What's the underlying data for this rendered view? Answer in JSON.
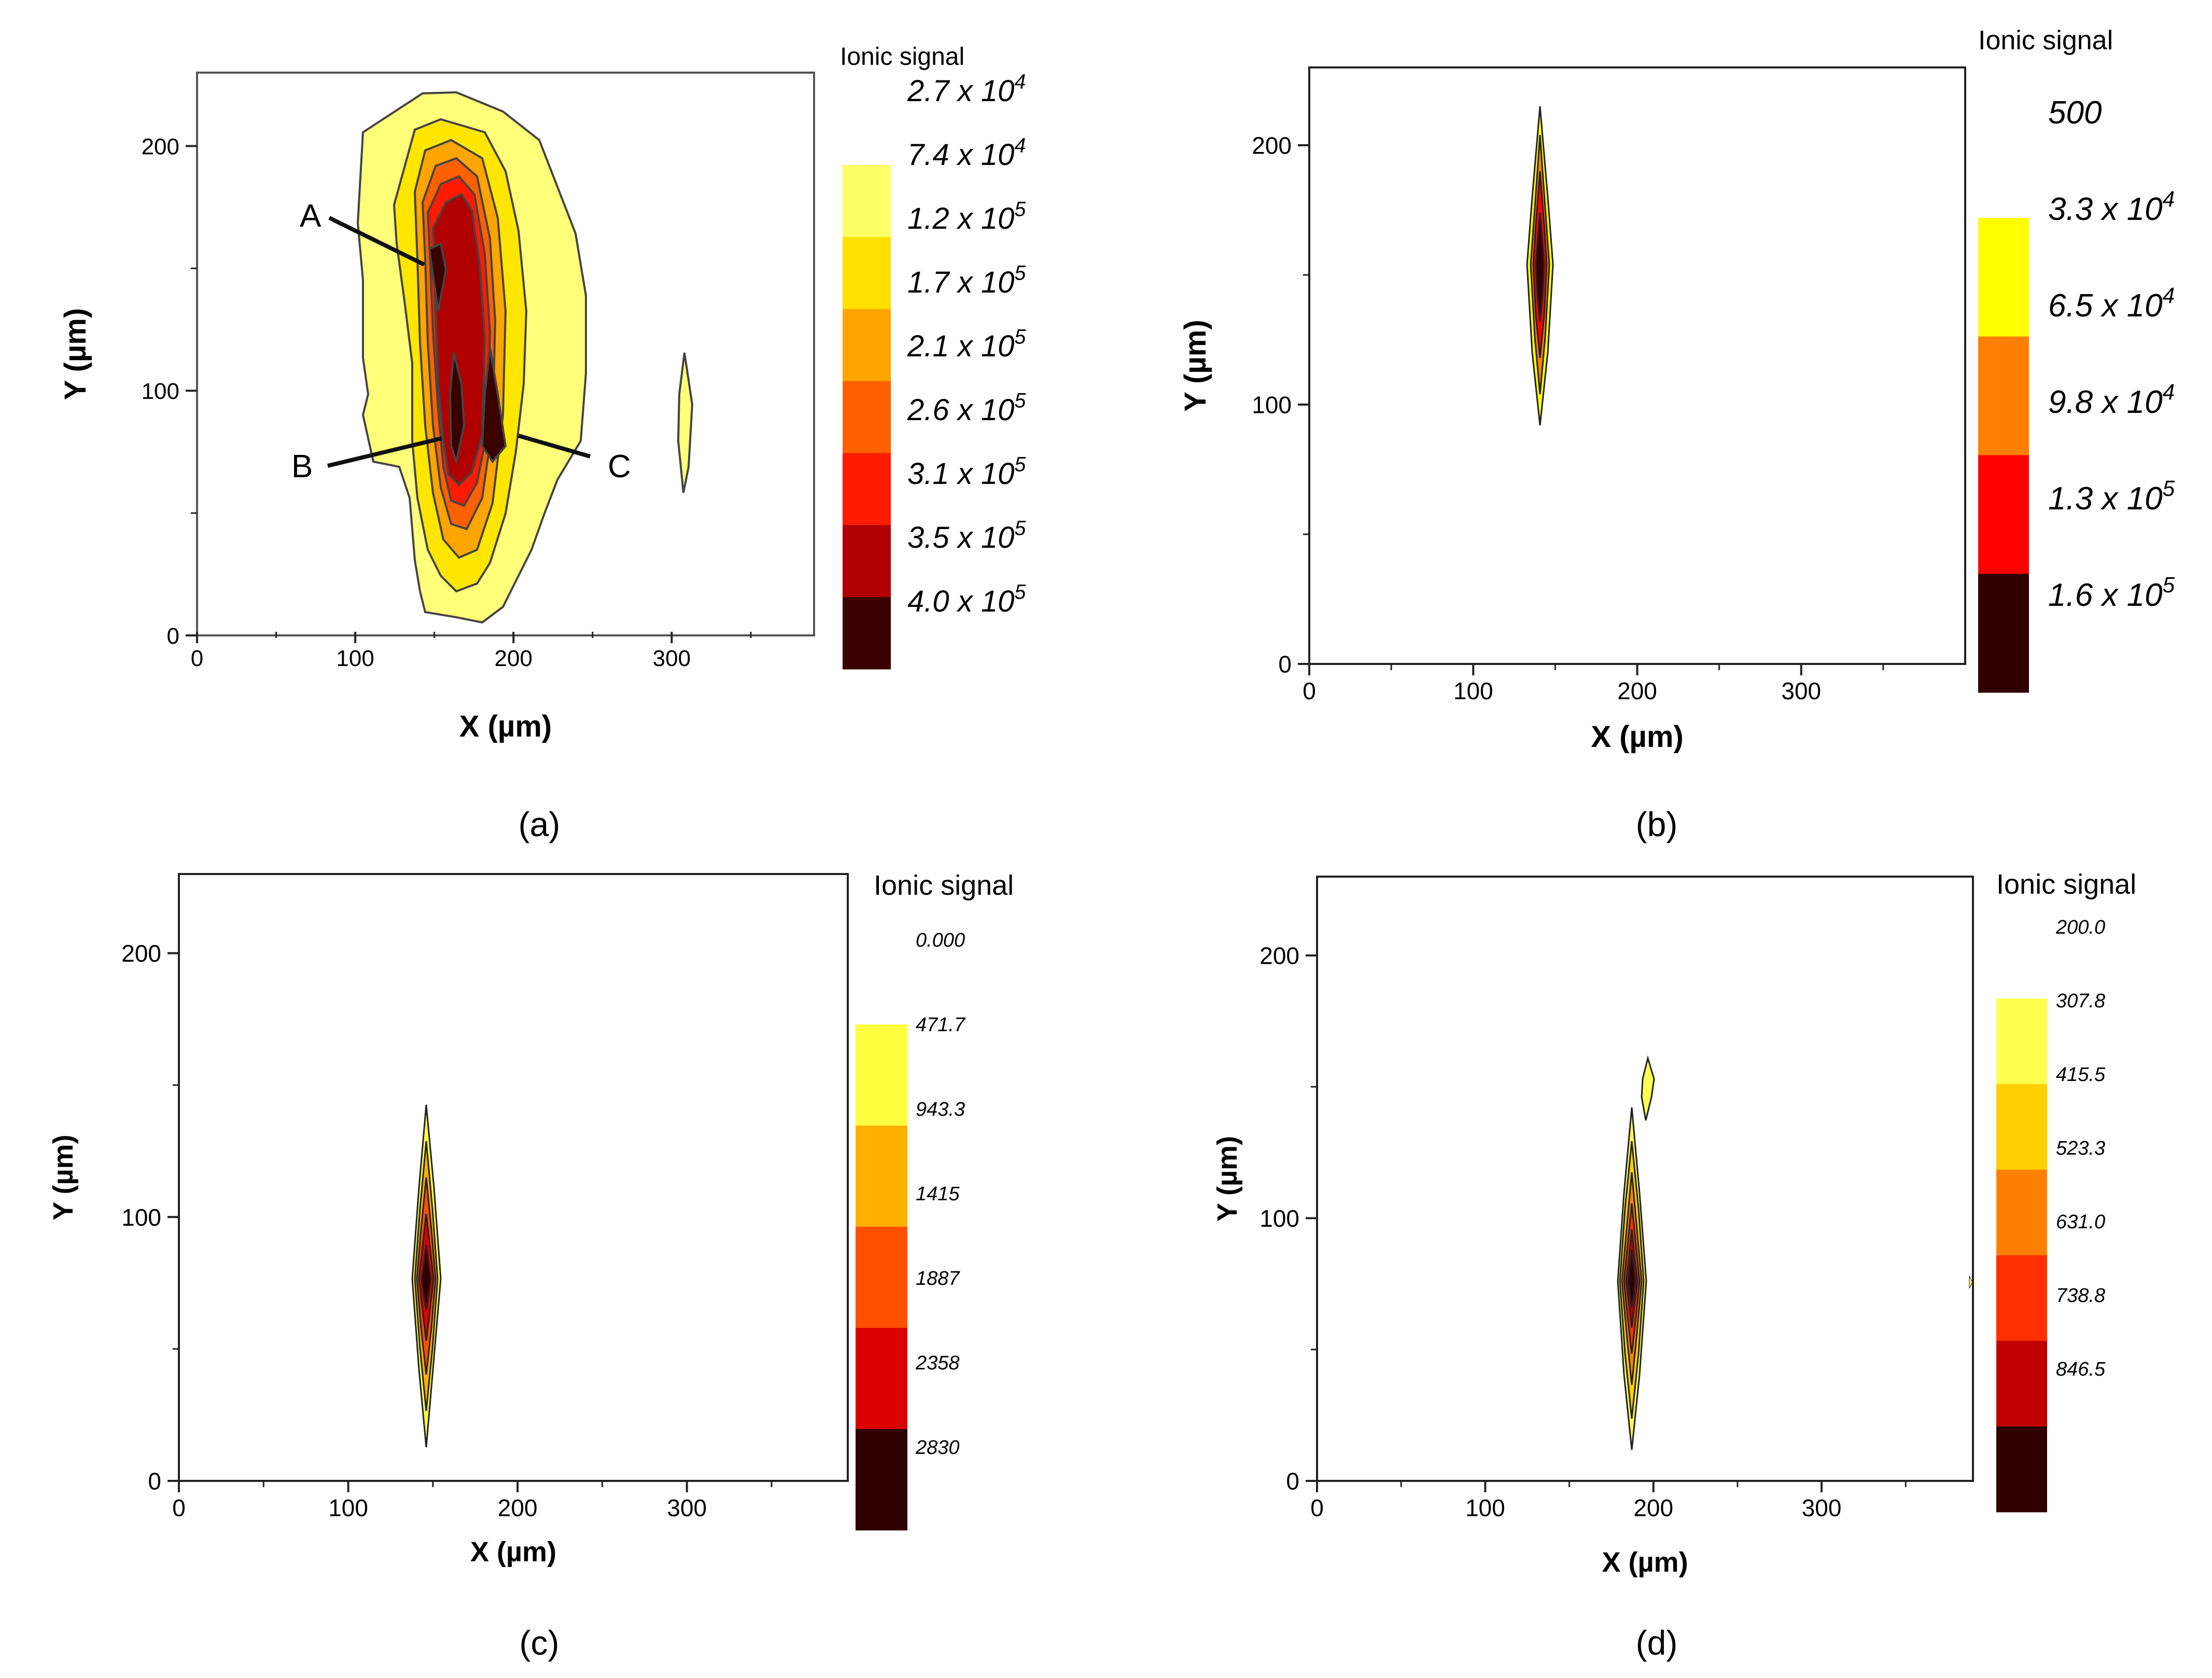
{
  "chart_data": [
    {
      "id": "a",
      "type": "contour",
      "caption": "(a)",
      "xlabel": "X (µm)",
      "ylabel": "Y (µm)",
      "xlim": [
        0,
        390
      ],
      "ylim": [
        0,
        230
      ],
      "xticks": [
        "0",
        "100",
        "200",
        "300"
      ],
      "xtick_values": [
        0,
        100,
        200,
        300
      ],
      "yticks": [
        "0",
        "100",
        "200"
      ],
      "ytick_values": [
        0,
        100,
        200
      ],
      "legend_title": "Ionic signal",
      "legend_levels": [
        {
          "base": "2.7 x 10",
          "exp": "4"
        },
        {
          "base": "7.4 x 10",
          "exp": "4"
        },
        {
          "base": "1.2 x 10",
          "exp": "5"
        },
        {
          "base": "1.7 x 10",
          "exp": "5"
        },
        {
          "base": "2.1 x 10",
          "exp": "5"
        },
        {
          "base": "2.6 x 10",
          "exp": "5"
        },
        {
          "base": "3.1 x 10",
          "exp": "5"
        },
        {
          "base": "3.5 x 10",
          "exp": "5"
        },
        {
          "base": "4.0 x 10",
          "exp": "5"
        }
      ],
      "legend_colors": [
        "#ffffff",
        "#ffff66",
        "#ffe000",
        "#ffa500",
        "#ff6000",
        "#ff1a00",
        "#b00000",
        "#3a0000"
      ],
      "annotations": [
        "A",
        "B",
        "C"
      ]
    },
    {
      "id": "b",
      "type": "contour",
      "caption": "(b)",
      "xlabel": "X (µm)",
      "ylabel": "Y (µm)",
      "xlim": [
        0,
        400
      ],
      "ylim": [
        0,
        230
      ],
      "xticks": [
        "0",
        "100",
        "200",
        "300"
      ],
      "xtick_values": [
        0,
        100,
        200,
        300
      ],
      "yticks": [
        "0",
        "100",
        "200"
      ],
      "ytick_values": [
        0,
        100,
        200
      ],
      "legend_title": "Ionic signal",
      "legend_levels": [
        {
          "base": "500",
          "exp": ""
        },
        {
          "base": "3.3 x 10",
          "exp": "4"
        },
        {
          "base": "6.5 x 10",
          "exp": "4"
        },
        {
          "base": "9.8 x 10",
          "exp": "4"
        },
        {
          "base": "1.3 x 10",
          "exp": "5"
        },
        {
          "base": "1.6 x 10",
          "exp": "5"
        }
      ],
      "legend_colors": [
        "#ffffff",
        "#ffff00",
        "#ff8000",
        "#ff0000",
        "#300000"
      ]
    },
    {
      "id": "c",
      "type": "contour",
      "caption": "(c)",
      "xlabel": "X (µm)",
      "ylabel": "Y (µm)",
      "xlim": [
        0,
        395
      ],
      "ylim": [
        0,
        230
      ],
      "xticks": [
        "0",
        "100",
        "200",
        "300"
      ],
      "xtick_values": [
        0,
        100,
        200,
        300
      ],
      "yticks": [
        "0",
        "100",
        "200"
      ],
      "ytick_values": [
        0,
        100,
        200
      ],
      "legend_title": "Ionic signal",
      "legend_levels": [
        {
          "base": "0.000",
          "exp": ""
        },
        {
          "base": "471.7",
          "exp": ""
        },
        {
          "base": "943.3",
          "exp": ""
        },
        {
          "base": "1415",
          "exp": ""
        },
        {
          "base": "1887",
          "exp": ""
        },
        {
          "base": "2358",
          "exp": ""
        },
        {
          "base": "2830",
          "exp": ""
        }
      ],
      "legend_colors": [
        "#ffffff",
        "#ffff40",
        "#ffb000",
        "#ff5000",
        "#dd0000",
        "#300000"
      ]
    },
    {
      "id": "d",
      "type": "contour",
      "caption": "(d)",
      "xlabel": "X (µm)",
      "ylabel": "Y (µm)",
      "xlim": [
        0,
        390
      ],
      "ylim": [
        0,
        230
      ],
      "xticks": [
        "0",
        "100",
        "200",
        "300"
      ],
      "xtick_values": [
        0,
        100,
        200,
        300
      ],
      "yticks": [
        "0",
        "100",
        "200"
      ],
      "ytick_values": [
        0,
        100,
        200
      ],
      "legend_title": "Ionic signal",
      "legend_levels": [
        {
          "base": "200.0",
          "exp": ""
        },
        {
          "base": "307.8",
          "exp": ""
        },
        {
          "base": "415.5",
          "exp": ""
        },
        {
          "base": "523.3",
          "exp": ""
        },
        {
          "base": "631.0",
          "exp": ""
        },
        {
          "base": "738.8",
          "exp": ""
        },
        {
          "base": "846.5",
          "exp": ""
        }
      ],
      "legend_colors": [
        "#ffffff",
        "#ffff50",
        "#ffd000",
        "#ff8000",
        "#ff3000",
        "#c00000",
        "#300000"
      ]
    }
  ]
}
